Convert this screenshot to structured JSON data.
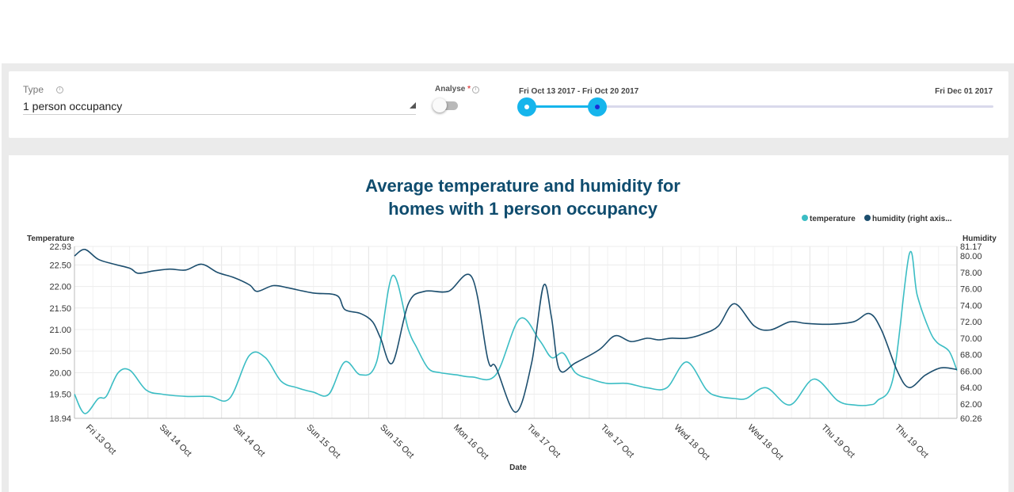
{
  "filters": {
    "type_label": "Type",
    "type_value": "1 person occupancy",
    "analyse_label": "Analyse",
    "analyse_required_mark": "*",
    "analyse_enabled": false,
    "date_range_label": "Fri Oct 13 2017 - Fri Oct 20 2017",
    "date_end_label": "Fri Dec 01 2017",
    "slider_selected_fraction": [
      0,
      0.15
    ]
  },
  "icons": {
    "type_info": "info-icon",
    "analyse_info": "info-icon",
    "type_dropdown": "triangle-down-icon"
  },
  "colors": {
    "temperature": "#3bbdc4",
    "humidity": "#1c4e6e",
    "title": "#0f4c6e",
    "slider": "#16b5ec"
  },
  "chart_data": {
    "type": "line",
    "title": "Average temperature and humidity for\nhomes with 1 person occupancy",
    "xlabel": "Date",
    "ylabel": "Temperature",
    "y2label": "Humidity",
    "ylim": [
      18.94,
      22.93
    ],
    "y2lim": [
      60.26,
      81.17
    ],
    "yticks": [
      "22.93",
      "22.50",
      "22.00",
      "21.50",
      "21.00",
      "20.50",
      "20.00",
      "19.50",
      "18.94"
    ],
    "y2ticks": [
      "81.17",
      "80.00",
      "78.00",
      "76.00",
      "74.00",
      "72.00",
      "70.00",
      "68.00",
      "66.00",
      "64.00",
      "62.00",
      "60.26"
    ],
    "xticks": [
      "Fri 13 Oct",
      "Sat 14 Oct",
      "Sat 14 Oct",
      "Sun 15 Oct",
      "Sun 15 Oct",
      "Mon 16 Oct",
      "Tue 17 Oct",
      "Tue 17 Oct",
      "Wed 18 Oct",
      "Wed 18 Oct",
      "Thu 19 Oct",
      "Thu 19 Oct"
    ],
    "xrange": [
      0,
      11.1
    ],
    "legend": [
      "temperature",
      "humidity (right axis..."
    ],
    "legend_position": "top-right",
    "grid": true,
    "series": [
      {
        "name": "temperature",
        "axis": "left",
        "x": [
          0,
          0.13,
          0.3,
          0.4,
          0.55,
          0.7,
          0.9,
          1.1,
          1.4,
          1.7,
          1.95,
          2.2,
          2.4,
          2.6,
          2.8,
          3.0,
          3.2,
          3.4,
          3.6,
          3.8,
          4.0,
          4.2,
          4.3,
          4.45,
          4.6,
          4.8,
          5.0,
          5.3,
          5.6,
          5.85,
          6.0,
          6.15,
          6.3,
          6.5,
          6.7,
          6.95,
          7.2,
          7.45,
          7.7,
          7.95,
          8.1,
          8.3,
          8.45,
          8.7,
          9.0,
          9.3,
          9.6,
          9.8,
          10.0,
          10.1,
          10.3,
          10.5,
          10.6,
          10.75,
          10.85,
          11.0,
          11.1
        ],
        "y": [
          19.5,
          19.05,
          19.4,
          19.45,
          20.0,
          20.05,
          19.6,
          19.5,
          19.45,
          19.45,
          19.4,
          20.4,
          20.35,
          19.8,
          19.65,
          19.55,
          19.5,
          20.25,
          19.95,
          20.25,
          22.25,
          21.0,
          20.6,
          20.1,
          20.0,
          19.95,
          19.9,
          19.95,
          21.25,
          20.75,
          20.35,
          20.45,
          20.0,
          19.85,
          19.75,
          19.75,
          19.65,
          19.65,
          20.25,
          19.6,
          19.45,
          19.4,
          19.4,
          19.65,
          19.25,
          19.85,
          19.35,
          19.25,
          19.25,
          19.35,
          19.9,
          22.75,
          21.8,
          21.0,
          20.7,
          20.5,
          20.05
        ]
      },
      {
        "name": "humidity (right axis...",
        "axis": "right",
        "x": [
          0,
          0.13,
          0.3,
          0.5,
          0.7,
          0.8,
          1.0,
          1.2,
          1.4,
          1.6,
          1.8,
          2.0,
          2.2,
          2.3,
          2.5,
          2.7,
          3.0,
          3.3,
          3.4,
          3.6,
          3.75,
          3.85,
          4.0,
          4.2,
          4.4,
          4.7,
          5.0,
          5.2,
          5.3,
          5.55,
          5.75,
          5.9,
          6.0,
          6.1,
          6.3,
          6.6,
          6.8,
          7.0,
          7.2,
          7.35,
          7.5,
          7.7,
          7.9,
          8.1,
          8.3,
          8.55,
          8.75,
          9.0,
          9.2,
          9.5,
          9.8,
          10.0,
          10.15,
          10.35,
          10.5,
          10.7,
          10.9,
          11.1
        ],
        "y": [
          80.0,
          80.8,
          79.6,
          79.0,
          78.5,
          77.9,
          78.2,
          78.4,
          78.3,
          79.0,
          78.0,
          77.4,
          76.5,
          75.7,
          76.4,
          76.1,
          75.5,
          75.2,
          73.5,
          73.0,
          72.0,
          70.0,
          67.0,
          74.2,
          75.7,
          75.7,
          77.4,
          67.4,
          66.5,
          61.0,
          67.0,
          76.4,
          72.5,
          66.2,
          67.0,
          68.6,
          70.3,
          69.6,
          70.0,
          69.8,
          70.0,
          70.0,
          70.5,
          71.5,
          74.2,
          71.5,
          71.0,
          72.0,
          71.8,
          71.7,
          72.0,
          73.0,
          71.0,
          66.0,
          64.0,
          65.5,
          66.4,
          66.2
        ]
      }
    ]
  }
}
